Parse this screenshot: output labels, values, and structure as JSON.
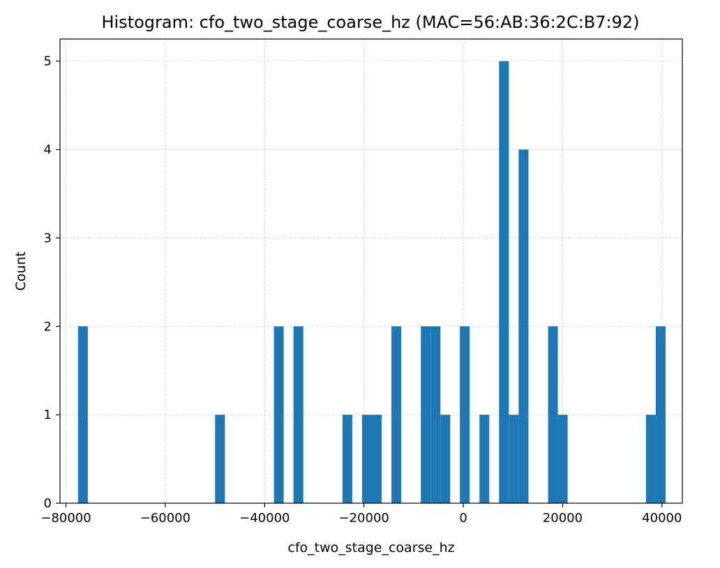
{
  "chart_data": {
    "type": "bar",
    "title": "Histogram: cfo_two_stage_coarse_hz (MAC=56:AB:36:2C:B7:92)",
    "xlabel": "cfo_two_stage_coarse_hz",
    "ylabel": "Count",
    "xlim": [
      -81200,
      44100
    ],
    "ylim": [
      0,
      5.25
    ],
    "grid": true,
    "bar_color": "#1f77b4",
    "bin_width": 1972,
    "x_ticks": [
      -80000,
      -60000,
      -40000,
      -20000,
      0,
      20000,
      40000
    ],
    "x_tick_labels": [
      "−80000",
      "−60000",
      "−40000",
      "−20000",
      "0",
      "20000",
      "40000"
    ],
    "y_ticks": [
      0,
      1,
      2,
      3,
      4,
      5
    ],
    "y_tick_labels": [
      "0",
      "1",
      "2",
      "3",
      "4",
      "5"
    ],
    "bins": [
      {
        "x0": -77575,
        "count": 2
      },
      {
        "x0": -49967,
        "count": 1
      },
      {
        "x0": -38133,
        "count": 2
      },
      {
        "x0": -34189,
        "count": 2
      },
      {
        "x0": -24328,
        "count": 1
      },
      {
        "x0": -20384,
        "count": 1
      },
      {
        "x0": -18411,
        "count": 1
      },
      {
        "x0": -14467,
        "count": 2
      },
      {
        "x0": -8550,
        "count": 2
      },
      {
        "x0": -6578,
        "count": 2
      },
      {
        "x0": -4606,
        "count": 1
      },
      {
        "x0": -689,
        "count": 2
      },
      {
        "x0": 3256,
        "count": 1
      },
      {
        "x0": 7200,
        "count": 5
      },
      {
        "x0": 9172,
        "count": 1
      },
      {
        "x0": 11144,
        "count": 4
      },
      {
        "x0": 17061,
        "count": 2
      },
      {
        "x0": 19033,
        "count": 1
      },
      {
        "x0": 36783,
        "count": 1
      },
      {
        "x0": 38755,
        "count": 2
      }
    ]
  }
}
